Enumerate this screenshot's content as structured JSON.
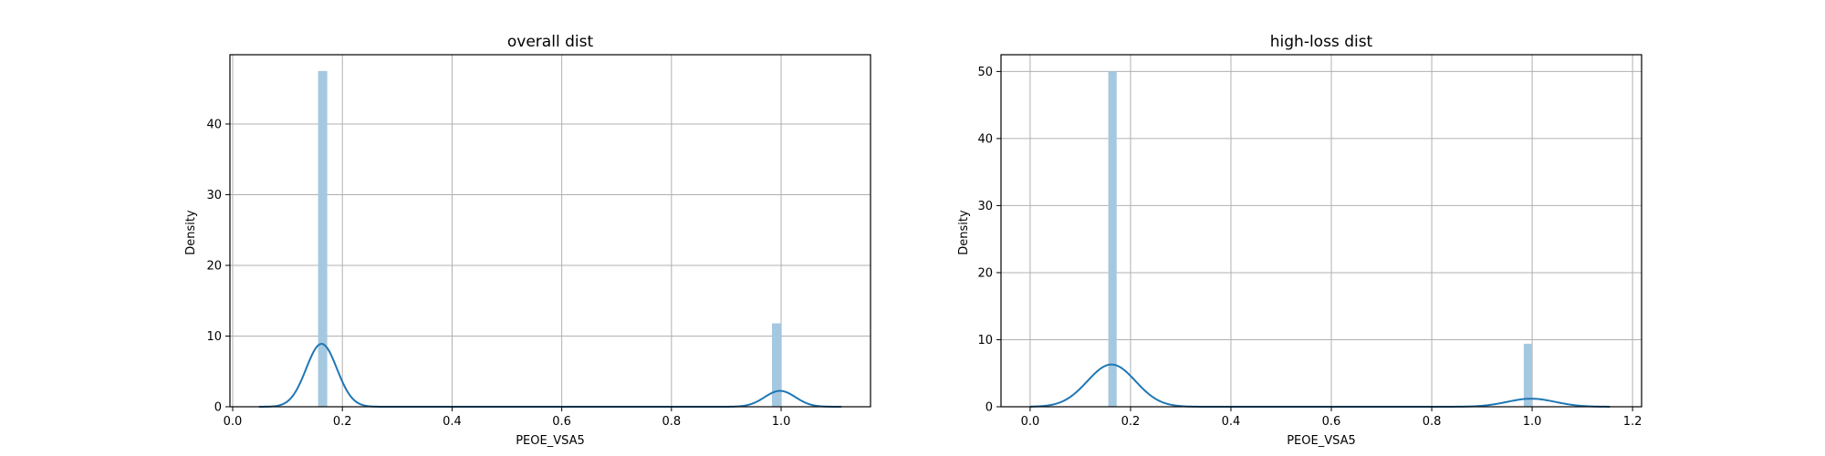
{
  "chart_data": [
    {
      "type": "bar",
      "title": "overall dist",
      "xlabel": "PEOE_VSA5",
      "ylabel": "Density",
      "xlim": [
        -0.005,
        1.163
      ],
      "ylim": [
        0,
        49.8
      ],
      "xticks": [
        0.0,
        0.2,
        0.4,
        0.6,
        0.8,
        1.0
      ],
      "xtick_labels": [
        "0.0",
        "0.2",
        "0.4",
        "0.6",
        "0.8",
        "1.0"
      ],
      "yticks": [
        0,
        10,
        20,
        30,
        40
      ],
      "ytick_labels": [
        "0",
        "10",
        "20",
        "30",
        "40"
      ],
      "grid": true,
      "bar_color": "#a5c8e1",
      "line_color": "#1f77b4",
      "histogram": {
        "bin_width": 0.0167,
        "bins": [
          {
            "x0": 0.1557,
            "x1": 0.1724,
            "density": 47.5
          },
          {
            "x0": 0.9833,
            "x1": 1.0,
            "density": 11.8
          }
        ]
      },
      "kde": {
        "x_range": [
          0.048,
          1.11
        ],
        "components": [
          {
            "center": 0.162,
            "height": 8.9,
            "sigma": 0.028
          },
          {
            "center": 0.998,
            "height": 2.25,
            "sigma": 0.028
          }
        ]
      }
    },
    {
      "type": "bar",
      "title": "high-loss dist",
      "xlabel": "PEOE_VSA5",
      "ylabel": "Density",
      "xlim": [
        -0.058,
        1.218
      ],
      "ylim": [
        0,
        52.5
      ],
      "xticks": [
        0.0,
        0.2,
        0.4,
        0.6,
        0.8,
        1.0,
        1.2
      ],
      "xtick_labels": [
        "0.0",
        "0.2",
        "0.4",
        "0.6",
        "0.8",
        "1.0",
        "1.2"
      ],
      "yticks": [
        0,
        10,
        20,
        30,
        40,
        50
      ],
      "ytick_labels": [
        "0",
        "10",
        "20",
        "30",
        "40",
        "50"
      ],
      "grid": true,
      "bar_color": "#a5c8e1",
      "line_color": "#1f77b4",
      "histogram": {
        "bin_width": 0.0167,
        "bins": [
          {
            "x0": 0.1557,
            "x1": 0.1724,
            "density": 50.0
          },
          {
            "x0": 0.9833,
            "x1": 1.0,
            "density": 9.4
          }
        ]
      },
      "kde": {
        "x_range": [
          0.0,
          1.155
        ],
        "components": [
          {
            "center": 0.162,
            "height": 6.3,
            "sigma": 0.048
          },
          {
            "center": 0.998,
            "height": 1.2,
            "sigma": 0.048
          }
        ]
      }
    }
  ]
}
